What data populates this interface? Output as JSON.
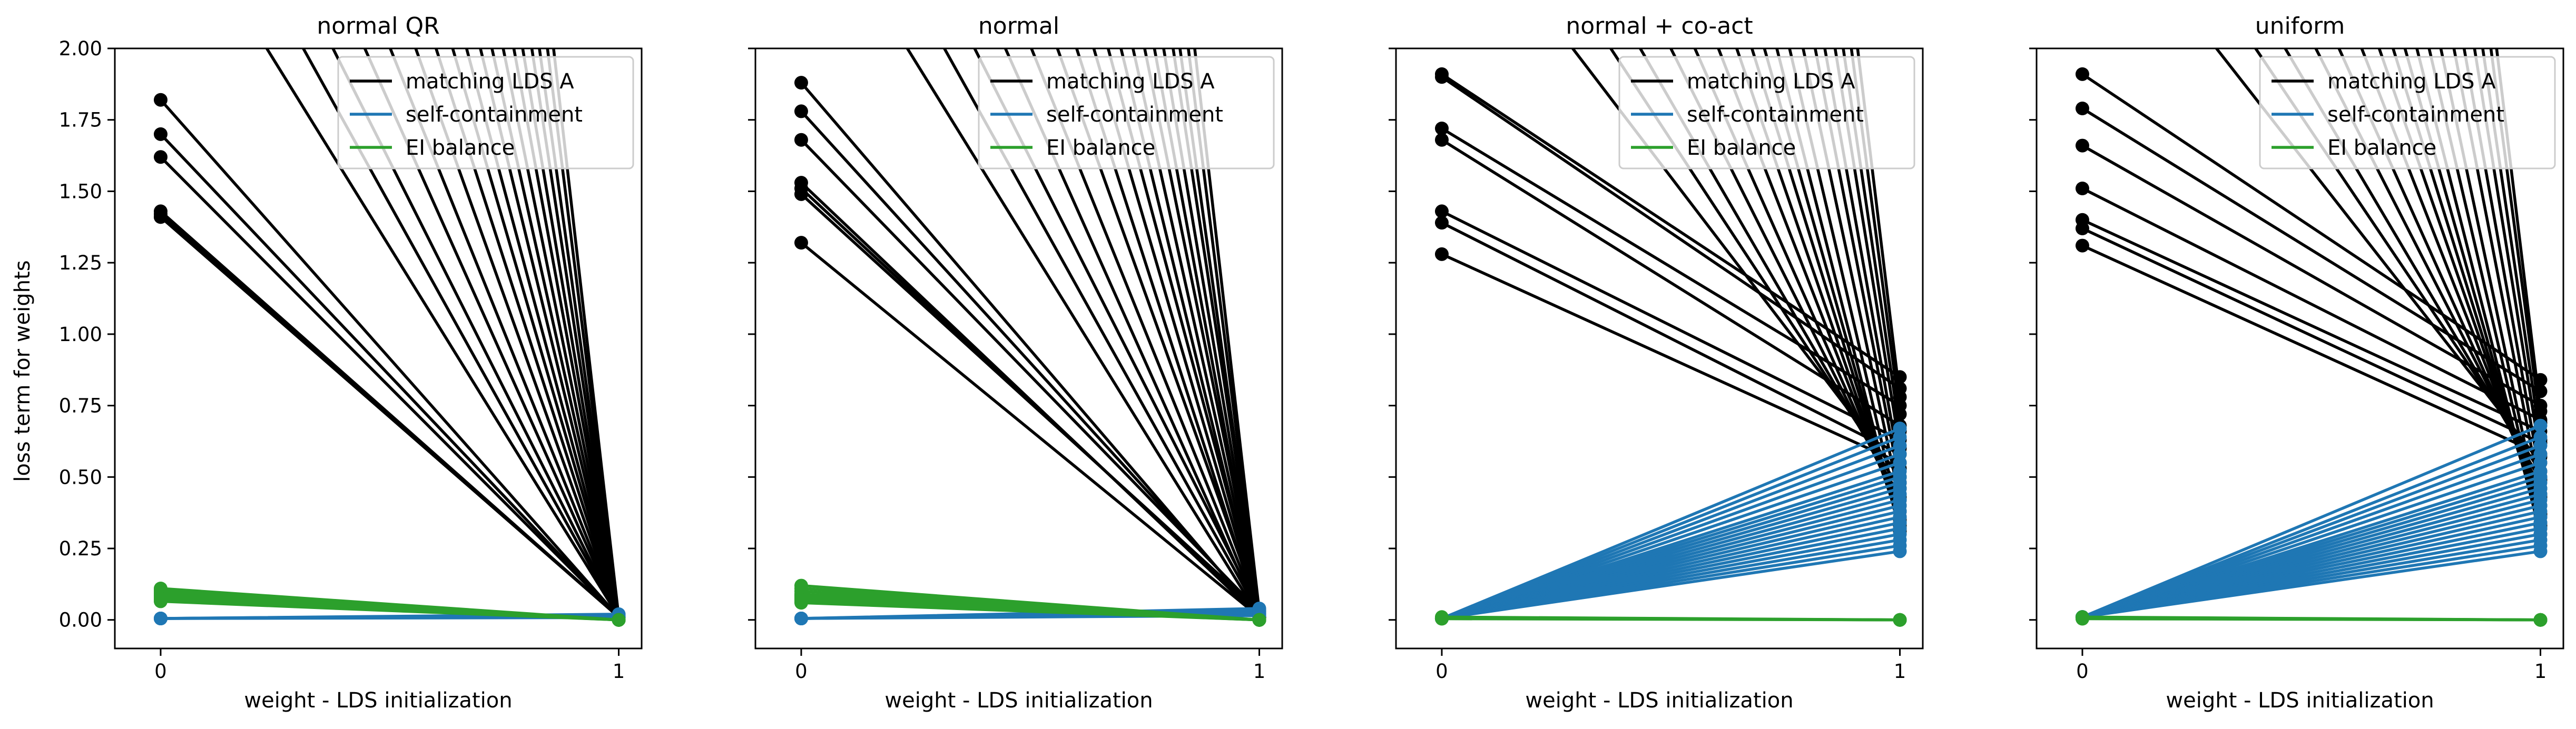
{
  "figure": {
    "ylabel": "loss term for weights"
  },
  "colors": {
    "matching": "#000000",
    "self": "#1f77b4",
    "ei": "#2ca02c",
    "background": "#ffffff"
  },
  "chart_data": [
    {
      "type": "line",
      "title": "normal QR",
      "xlabel": "weight - LDS initialization",
      "ylabel": "loss term for weights",
      "xlim": [
        -0.1,
        1.05
      ],
      "ylim": [
        -0.1,
        2.0
      ],
      "x_ticks": [
        0,
        1
      ],
      "y_ticks": [
        0.0,
        0.25,
        0.5,
        0.75,
        1.0,
        1.25,
        1.5,
        1.75,
        2.0
      ],
      "y_tick_labels": [
        "0.00",
        "0.25",
        "0.50",
        "0.75",
        "1.00",
        "1.25",
        "1.50",
        "1.75",
        "2.00"
      ],
      "grid": false,
      "legend_position": "top-right",
      "legend": [
        "matching LDS A",
        "self-containment",
        "EI balance"
      ],
      "series": [
        {
          "name": "matching LDS A",
          "color": "#000000",
          "start": [
            1.82,
            1.7,
            1.62,
            1.43,
            1.42,
            1.41,
            1.41,
            2.6,
            2.9,
            3.2,
            3.6,
            4.0,
            4.5,
            5.0,
            5.5,
            6.0,
            6.6,
            7.2,
            7.9,
            8.7,
            9.5,
            10.5,
            11.5,
            12.8,
            14.0
          ],
          "end": [
            0.01,
            0.01,
            0.01,
            0.01,
            0.01,
            0.01,
            0.01,
            0.01,
            0.01,
            0.01,
            0.01,
            0.01,
            0.01,
            0.01,
            0.01,
            0.01,
            0.01,
            0.01,
            0.01,
            0.01,
            0.01,
            0.01,
            0.01,
            0.01,
            0.01
          ]
        },
        {
          "name": "self-containment",
          "color": "#1f77b4",
          "start": [
            0.005,
            0.005,
            0.005,
            0.005,
            0.005,
            0.005
          ],
          "end": [
            0.015,
            0.01,
            0.012,
            0.008,
            0.02,
            0.018
          ]
        },
        {
          "name": "EI balance",
          "color": "#2ca02c",
          "start": [
            0.11,
            0.105,
            0.1,
            0.095,
            0.09,
            0.085,
            0.08,
            0.075,
            0.07,
            0.065
          ],
          "end": [
            0.0,
            0.0,
            0.0,
            0.0,
            0.0,
            0.0,
            0.0,
            0.0,
            0.0,
            0.0
          ]
        }
      ]
    },
    {
      "type": "line",
      "title": "normal",
      "xlabel": "weight - LDS initialization",
      "ylabel": "loss term for weights",
      "xlim": [
        -0.1,
        1.05
      ],
      "ylim": [
        -0.1,
        2.0
      ],
      "x_ticks": [
        0,
        1
      ],
      "y_ticks": [
        0.0,
        0.25,
        0.5,
        0.75,
        1.0,
        1.25,
        1.5,
        1.75,
        2.0
      ],
      "y_tick_labels": [
        "0.00",
        "0.25",
        "0.50",
        "0.75",
        "1.00",
        "1.25",
        "1.50",
        "1.75",
        "2.00"
      ],
      "grid": false,
      "legend_position": "top-right",
      "legend": [
        "matching LDS A",
        "self-containment",
        "EI balance"
      ],
      "series": [
        {
          "name": "matching LDS A",
          "color": "#000000",
          "start": [
            1.88,
            1.78,
            1.68,
            1.53,
            1.51,
            1.49,
            1.32,
            2.6,
            2.9,
            3.2,
            3.6,
            4.0,
            4.5,
            5.0,
            5.5,
            6.0,
            6.6,
            7.2,
            7.9,
            8.7,
            9.5,
            10.5,
            11.5,
            12.8,
            14.0
          ],
          "end": [
            0.01,
            0.02,
            0.03,
            0.01,
            0.02,
            0.03,
            0.01,
            0.01,
            0.02,
            0.03,
            0.01,
            0.02,
            0.03,
            0.01,
            0.02,
            0.03,
            0.01,
            0.02,
            0.03,
            0.01,
            0.02,
            0.03,
            0.01,
            0.02,
            0.03
          ]
        },
        {
          "name": "self-containment",
          "color": "#1f77b4",
          "start": [
            0.005,
            0.005,
            0.005,
            0.005,
            0.005,
            0.005
          ],
          "end": [
            0.03,
            0.04,
            0.02,
            0.035,
            0.025,
            0.015
          ]
        },
        {
          "name": "EI balance",
          "color": "#2ca02c",
          "start": [
            0.12,
            0.11,
            0.1,
            0.09,
            0.085,
            0.08,
            0.075,
            0.07,
            0.065,
            0.06
          ],
          "end": [
            0.0,
            0.0,
            0.0,
            0.0,
            0.0,
            0.0,
            0.0,
            0.0,
            0.0,
            0.0
          ]
        }
      ]
    },
    {
      "type": "line",
      "title": "normal + co-act",
      "xlabel": "weight - LDS initialization",
      "ylabel": "loss term for weights",
      "xlim": [
        -0.1,
        1.05
      ],
      "ylim": [
        -0.1,
        2.0
      ],
      "x_ticks": [
        0,
        1
      ],
      "y_ticks": [
        0.0,
        0.25,
        0.5,
        0.75,
        1.0,
        1.25,
        1.5,
        1.75,
        2.0
      ],
      "y_tick_labels": [
        "0.00",
        "0.25",
        "0.50",
        "0.75",
        "1.00",
        "1.25",
        "1.50",
        "1.75",
        "2.00"
      ],
      "grid": false,
      "legend_position": "top-right",
      "legend": [
        "matching LDS A",
        "self-containment",
        "EI balance"
      ],
      "series": [
        {
          "name": "matching LDS A",
          "color": "#000000",
          "start": [
            1.91,
            1.9,
            1.72,
            1.68,
            1.43,
            1.39,
            1.28,
            2.6,
            2.9,
            3.2,
            3.6,
            4.0,
            4.5,
            5.0,
            5.5,
            6.0,
            6.6,
            7.2,
            7.9,
            8.7,
            9.5,
            10.5,
            11.5,
            12.8,
            14.0
          ],
          "end": [
            0.85,
            0.81,
            0.75,
            0.68,
            0.63,
            0.58,
            0.55,
            0.5,
            0.46,
            0.43,
            0.4,
            0.38,
            0.36,
            0.34,
            0.33,
            0.32,
            0.31,
            0.35,
            0.42,
            0.48,
            0.53,
            0.6,
            0.66,
            0.72,
            0.78
          ]
        },
        {
          "name": "self-containment",
          "color": "#1f77b4",
          "start": [
            0.005,
            0.005,
            0.005,
            0.005,
            0.005,
            0.005,
            0.005,
            0.005,
            0.005,
            0.005,
            0.005,
            0.005,
            0.005,
            0.005,
            0.005,
            0.005,
            0.005,
            0.005,
            0.005,
            0.005
          ],
          "end": [
            0.24,
            0.26,
            0.28,
            0.3,
            0.32,
            0.34,
            0.36,
            0.38,
            0.4,
            0.42,
            0.44,
            0.46,
            0.48,
            0.5,
            0.52,
            0.55,
            0.58,
            0.61,
            0.64,
            0.67
          ]
        },
        {
          "name": "EI balance",
          "color": "#2ca02c",
          "start": [
            0.01,
            0.008,
            0.006,
            0.004
          ],
          "end": [
            0.0,
            0.0,
            0.0,
            0.0
          ]
        }
      ]
    },
    {
      "type": "line",
      "title": "uniform",
      "xlabel": "weight - LDS initialization",
      "ylabel": "loss term for weights",
      "xlim": [
        -0.1,
        1.05
      ],
      "ylim": [
        -0.1,
        2.0
      ],
      "x_ticks": [
        0,
        1
      ],
      "y_ticks": [
        0.0,
        0.25,
        0.5,
        0.75,
        1.0,
        1.25,
        1.5,
        1.75,
        2.0
      ],
      "y_tick_labels": [
        "0.00",
        "0.25",
        "0.50",
        "0.75",
        "1.00",
        "1.25",
        "1.50",
        "1.75",
        "2.00"
      ],
      "grid": false,
      "legend_position": "top-right",
      "legend": [
        "matching LDS A",
        "self-containment",
        "EI balance"
      ],
      "series": [
        {
          "name": "matching LDS A",
          "color": "#000000",
          "start": [
            1.91,
            1.79,
            1.66,
            1.51,
            1.4,
            1.37,
            1.31,
            2.6,
            2.9,
            3.2,
            3.6,
            4.0,
            4.5,
            5.0,
            5.5,
            6.0,
            6.6,
            7.2,
            7.9,
            8.7,
            9.5,
            10.5,
            11.5,
            12.8,
            14.0
          ],
          "end": [
            0.84,
            0.8,
            0.75,
            0.7,
            0.66,
            0.62,
            0.58,
            0.55,
            0.52,
            0.49,
            0.46,
            0.43,
            0.4,
            0.37,
            0.34,
            0.32,
            0.3,
            0.33,
            0.36,
            0.44,
            0.5,
            0.57,
            0.63,
            0.69,
            0.73
          ]
        },
        {
          "name": "self-containment",
          "color": "#1f77b4",
          "start": [
            0.01,
            0.01,
            0.01,
            0.01,
            0.01,
            0.01,
            0.01,
            0.01,
            0.01,
            0.01,
            0.01,
            0.01,
            0.01,
            0.01,
            0.01,
            0.01,
            0.01,
            0.01,
            0.01,
            0.01
          ],
          "end": [
            0.24,
            0.26,
            0.28,
            0.3,
            0.32,
            0.34,
            0.36,
            0.38,
            0.4,
            0.42,
            0.44,
            0.46,
            0.48,
            0.5,
            0.52,
            0.55,
            0.58,
            0.61,
            0.64,
            0.68
          ]
        },
        {
          "name": "EI balance",
          "color": "#2ca02c",
          "start": [
            0.01,
            0.008,
            0.006,
            0.004
          ],
          "end": [
            0.0,
            0.0,
            0.0,
            0.0
          ]
        }
      ]
    }
  ]
}
